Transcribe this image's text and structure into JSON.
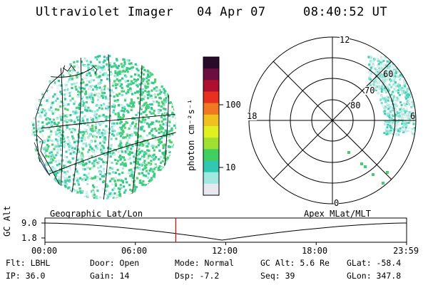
{
  "header": {
    "instrument": "Ultraviolet Imager",
    "date": "04 Apr 07",
    "time": "08:40:52 UT"
  },
  "colorbar": {
    "unit_label": "photon cm⁻²s⁻¹",
    "ticks": [
      "100",
      "10"
    ],
    "scale": "log",
    "colors": [
      "#2a0a2a",
      "#6a0f40",
      "#b01030",
      "#e83020",
      "#f07820",
      "#f0c020",
      "#e0f020",
      "#a0e030",
      "#40d060",
      "#30c8b0",
      "#a0e8e0",
      "#e8e8f0"
    ]
  },
  "polar": {
    "mlt_labels": [
      "12",
      "18",
      "6",
      "0"
    ],
    "lat_labels": [
      "60",
      "70",
      "80"
    ]
  },
  "map_labels": {
    "left": "Geographic Lat/Lon",
    "right": "Apex MLat/MLT"
  },
  "altitude_plot": {
    "axis_label": "GC Alt",
    "y_ticks": [
      "9.0",
      "1.8"
    ],
    "x_ticks": [
      "00:00",
      "06:00",
      "12:00",
      "18:00",
      "23:59"
    ],
    "current_time_marker_hour": 8.68,
    "marker_color": "#e00000"
  },
  "status": {
    "flt": "Flt: LBHL",
    "ip": "IP: 36.0",
    "door": "Door: Open",
    "gain": "Gain: 14",
    "mode": "Mode: Normal",
    "dsp": "Dsp:   -7.2",
    "gc_alt": "GC Alt: 5.6 Re",
    "seq": "Seq: 39",
    "glat": "GLat: -58.4",
    "glon": "GLon: 347.8"
  }
}
